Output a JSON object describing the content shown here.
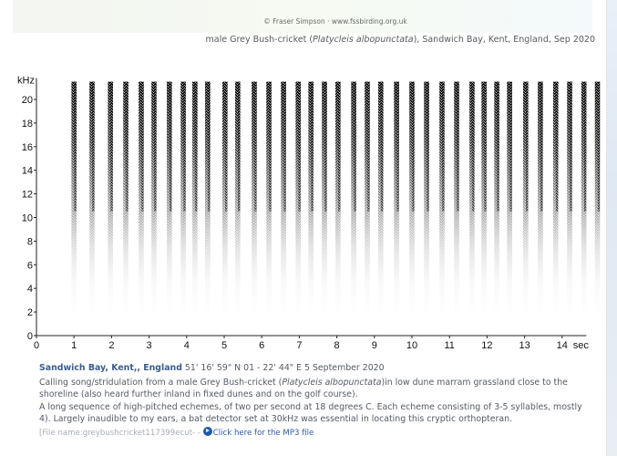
{
  "header": {
    "credit": "© Fraser Simpson  ·  www.fssbirding.org.uk",
    "caption_prefix": "male Grey Bush-cricket (",
    "caption_species": "Platycleis albopunctata",
    "caption_suffix": "), Sandwich Bay, Kent, England, Sep 2020"
  },
  "chart_data": {
    "type": "heatmap",
    "subtype": "spectrogram",
    "title": "",
    "xlabel": "sec",
    "ylabel": "kHz",
    "xlim": [
      0,
      14.5
    ],
    "ylim": [
      0,
      21.5
    ],
    "x_ticks": [
      0,
      1,
      2,
      3,
      4,
      5,
      6,
      7,
      8,
      9,
      10,
      11,
      12,
      13,
      14
    ],
    "y_ticks": [
      0,
      2,
      4,
      6,
      8,
      10,
      12,
      14,
      16,
      18,
      20
    ],
    "grid": false,
    "description": "Series of ~37 vertical broadband echemes, about two per second, energy concentrated from ~2 kHz to above 21 kHz, strongest (darkest) at 15-21+ kHz and fading below ~8 kHz.",
    "echeme_times_sec": [
      1.0,
      1.48,
      1.97,
      2.38,
      2.79,
      3.13,
      3.54,
      3.91,
      4.22,
      4.56,
      5.02,
      5.36,
      5.8,
      6.19,
      6.58,
      6.97,
      7.31,
      7.67,
      8.03,
      8.45,
      8.81,
      9.17,
      9.59,
      10.0,
      10.39,
      10.8,
      11.19,
      11.6,
      11.92,
      12.26,
      12.6,
      13.03,
      13.42,
      13.83,
      14.2,
      14.58,
      14.94
    ],
    "echeme_freq_range_khz": [
      2,
      21.5
    ],
    "echeme_peak_band_khz": [
      15,
      21.5
    ]
  },
  "axis": {
    "y_unit": "kHz",
    "x_unit": "sec"
  },
  "info": {
    "location": "Sandwich Bay, Kent,, England",
    "coords_date": " 51' 16' 59\" N 01 - 22' 44\" E  5 September 2020",
    "desc1_prefix": "Calling song/stridulation from a male Grey Bush-cricket (",
    "desc1_species": "Platycleis albopunctata",
    "desc1_suffix": ")in low dune marram grassland close to the shoreline (also heard further inland in fixed dunes and on the golf course).",
    "desc2": "A long sequence of high-pitched echemes, of two per second at 18 degrees C. Each echeme consisting of 3-5 syllables, mostly 4). Largely inaudible to my ears, a bat detector set at 30kHz was essential in locating this cryptic orthopteran.",
    "file_label": "[File name:greybushcricket117399ecut- - ",
    "mp3_link": "Click here for the MP3 file"
  }
}
